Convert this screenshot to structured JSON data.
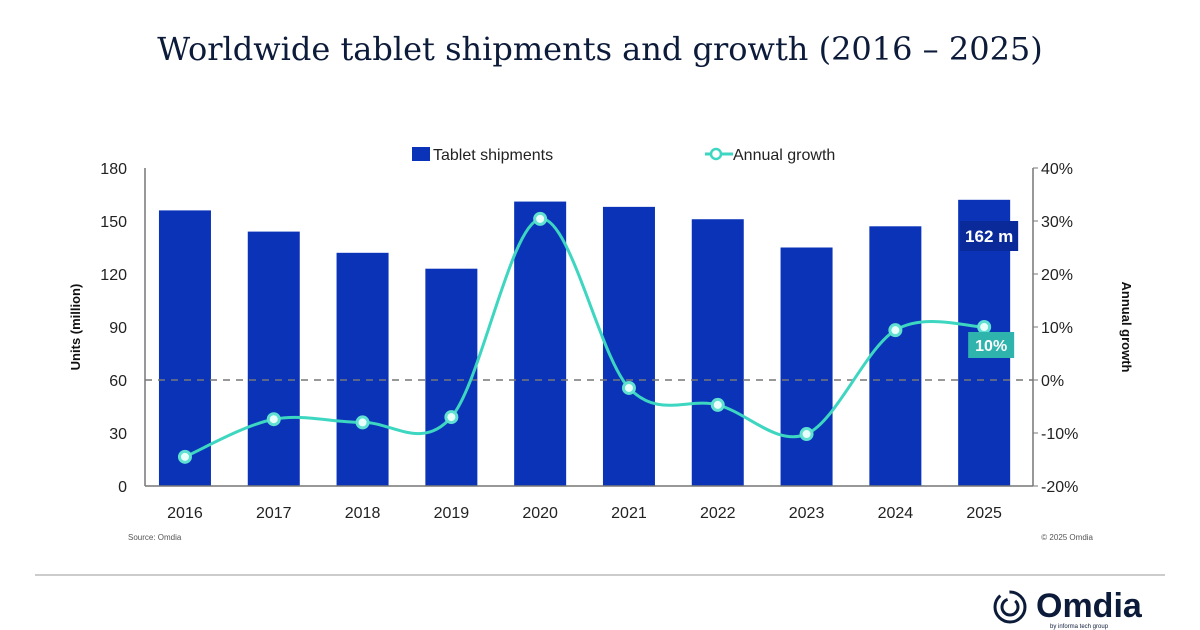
{
  "chart_data": {
    "type": "bar+line",
    "title": "Worldwide tablet shipments and growth (2016 – 2025)",
    "categories": [
      "2016",
      "2017",
      "2018",
      "2019",
      "2020",
      "2021",
      "2022",
      "2023",
      "2024",
      "2025"
    ],
    "series": [
      {
        "name": "Tablet shipments",
        "type": "bar",
        "axis": "left",
        "color": "#0a33b8",
        "values": [
          156,
          144,
          132,
          123,
          161,
          158,
          151,
          135,
          147,
          162
        ]
      },
      {
        "name": "Annual growth",
        "type": "line",
        "axis": "right",
        "color": "#3dd6c0",
        "values": [
          -14.5,
          -7.4,
          -8,
          -7,
          30.4,
          -1.5,
          -4.7,
          -10.2,
          9.4,
          10
        ]
      }
    ],
    "ylabel": "Units (million)",
    "y2label": "Annual growth",
    "ylim": [
      0,
      180
    ],
    "yticks": [
      "0",
      "30",
      "60",
      "90",
      "120",
      "150",
      "180"
    ],
    "y2lim": [
      -20,
      40
    ],
    "y2ticks": [
      "-20%",
      "-10%",
      "0%",
      "10%",
      "20%",
      "30%",
      "40%"
    ],
    "zero_growth_line": "dashed",
    "legend_position": "top",
    "annotations": {
      "bar_2025": "162 m",
      "growth_2025": "10%"
    },
    "source": "Source: Omdia",
    "copyright": "© 2025 Omdia"
  },
  "brand": {
    "logo": "Omdia",
    "tagline": "by informa tech group"
  }
}
